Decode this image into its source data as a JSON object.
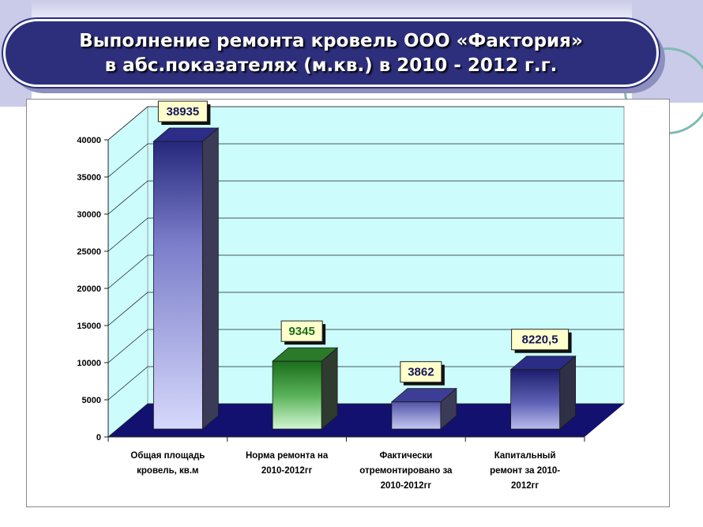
{
  "slide": {
    "title": "Выполнение ремонта кровель ООО «Фактория»\nв абс.показателях (м.кв.) в 2010 - 2012 г.г."
  },
  "colors": {
    "title_bg": "#2d2f7c",
    "wall": "#ccfcfc",
    "floor": "#121170",
    "bar_blue": "#bfc2ee",
    "bar_green": "#2e8b2e",
    "bar_darkblue": "#23237a"
  },
  "chart_data": {
    "type": "bar",
    "title": "",
    "xlabel": "",
    "ylabel": "",
    "ylim": [
      0,
      40000
    ],
    "yticks": [
      "0",
      "5000",
      "10000",
      "15000",
      "20000",
      "25000",
      "30000",
      "35000",
      "40000"
    ],
    "grid": true,
    "legend": "none",
    "categories": [
      [
        "Общая площадь",
        "кровель, кв.м"
      ],
      [
        "Норма ремонта на",
        "2010-2012гг"
      ],
      [
        "Фактически",
        "отремонтировано за",
        "2010-2012гг"
      ],
      [
        "Капитальный",
        "ремонт за 2010-",
        "2012гг"
      ]
    ],
    "values": [
      38935,
      9345,
      3862,
      8220.5
    ],
    "data_labels": [
      "38935",
      "9345",
      "3862",
      "8220,5"
    ],
    "bar_colors": [
      "blue",
      "green",
      "lightblue",
      "darkblue"
    ]
  }
}
